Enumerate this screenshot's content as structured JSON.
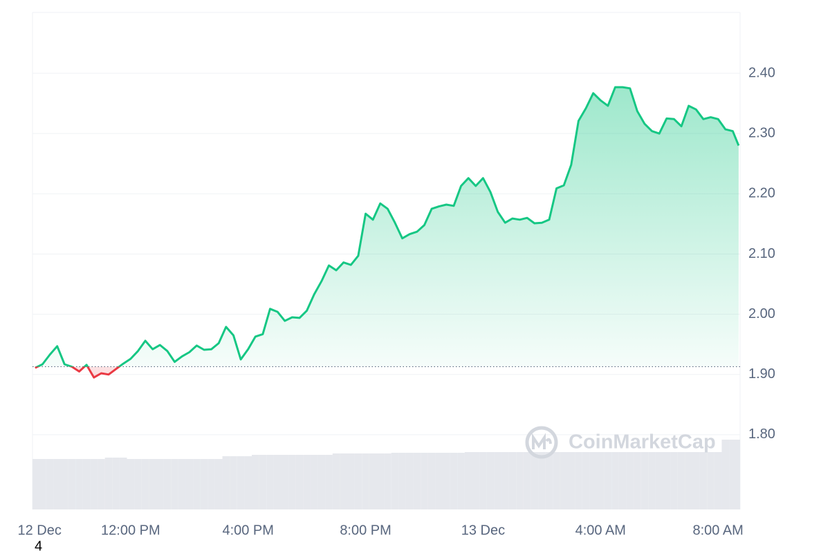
{
  "chart_data": {
    "type": "line",
    "x": [
      8.75,
      9,
      9.25,
      9.5,
      9.75,
      10,
      10.25,
      10.5,
      10.75,
      11,
      11.25,
      11.5,
      11.75,
      12,
      12.25,
      12.5,
      12.75,
      13,
      13.25,
      13.5,
      13.75,
      14,
      14.25,
      14.5,
      14.75,
      15,
      15.25,
      15.5,
      15.75,
      16,
      16.25,
      16.5,
      16.75,
      17,
      17.25,
      17.5,
      17.75,
      18,
      18.25,
      18.5,
      18.75,
      19,
      19.25,
      19.5,
      19.75,
      20,
      20.25,
      20.5,
      20.75,
      21,
      21.25,
      21.5,
      21.75,
      22,
      22.25,
      22.5,
      22.75,
      23,
      23.25,
      23.5,
      23.75,
      24,
      24.25,
      24.5,
      24.75,
      25,
      25.25,
      25.5,
      25.75,
      26,
      26.25,
      26.5,
      26.75,
      27,
      27.25,
      27.5,
      27.75,
      28,
      28.25,
      28.5,
      28.75,
      29,
      29.25,
      29.5,
      29.75,
      30,
      30.25,
      30.5,
      30.75,
      31,
      31.25,
      31.5,
      31.75,
      32,
      32.25,
      32.5,
      32.7
    ],
    "series": [
      {
        "color_up": "#16c784",
        "color_down": "#ea3943",
        "values": [
          1.911,
          1.917,
          1.933,
          1.947,
          1.917,
          1.913,
          1.905,
          1.916,
          1.895,
          1.902,
          1.9,
          1.909,
          1.918,
          1.926,
          1.939,
          1.956,
          1.942,
          1.949,
          1.939,
          1.921,
          1.93,
          1.937,
          1.948,
          1.941,
          1.942,
          1.952,
          1.979,
          1.965,
          1.925,
          1.942,
          1.963,
          1.967,
          2.009,
          2.004,
          1.989,
          1.995,
          1.994,
          2.006,
          2.033,
          2.055,
          2.081,
          2.073,
          2.086,
          2.082,
          2.097,
          2.167,
          2.157,
          2.184,
          2.175,
          2.152,
          2.126,
          2.133,
          2.137,
          2.148,
          2.175,
          2.179,
          2.182,
          2.18,
          2.213,
          2.226,
          2.213,
          2.226,
          2.203,
          2.17,
          2.152,
          2.159,
          2.157,
          2.16,
          2.151,
          2.152,
          2.157,
          2.209,
          2.214,
          2.248,
          2.321,
          2.342,
          2.367,
          2.355,
          2.346,
          2.377,
          2.377,
          2.375,
          2.337,
          2.316,
          2.304,
          2.3,
          2.325,
          2.324,
          2.312,
          2.346,
          2.34,
          2.324,
          2.327,
          2.324,
          2.307,
          2.304,
          2.28
        ]
      }
    ],
    "reference_line": 1.913,
    "volume": {
      "color": "#e6e8ed",
      "vlim": [
        0,
        110
      ],
      "values": [
        73,
        73,
        73,
        73,
        73,
        73,
        73,
        73,
        73,
        73,
        75,
        75,
        75,
        73,
        73,
        73,
        73,
        73,
        73,
        73,
        73,
        73,
        73,
        73,
        73,
        73,
        77,
        77,
        77,
        77,
        79,
        79,
        79,
        79,
        79,
        79,
        79,
        79,
        79,
        79,
        79,
        81,
        81,
        81,
        81,
        81,
        81,
        81,
        81,
        82,
        82,
        82,
        82,
        82,
        82,
        82,
        82,
        82,
        82,
        83,
        83,
        83,
        83,
        83,
        83,
        83,
        83,
        83,
        83,
        83,
        83,
        83,
        83,
        83,
        83,
        83,
        83,
        83,
        83,
        83,
        83,
        83,
        83,
        83,
        83,
        83,
        83,
        83,
        83,
        83,
        83,
        83,
        83,
        83,
        101,
        101,
        101
      ]
    },
    "xlim": [
      8.66,
      32.75
    ],
    "ylim": [
      1.676,
      2.501
    ],
    "yticks": [
      {
        "value": 1.8,
        "label": "1.80"
      },
      {
        "value": 1.9,
        "label": "1.90"
      },
      {
        "value": 2.0,
        "label": "2.00"
      },
      {
        "value": 2.1,
        "label": "2.10"
      },
      {
        "value": 2.2,
        "label": "2.20"
      },
      {
        "value": 2.3,
        "label": "2.30"
      },
      {
        "value": 2.4,
        "label": "2.40"
      }
    ],
    "xticks": [
      {
        "value": 8.9,
        "label": "12 Dec"
      },
      {
        "value": 12,
        "label": "12:00 PM"
      },
      {
        "value": 16,
        "label": "4:00 PM"
      },
      {
        "value": 20,
        "label": "8:00 PM"
      },
      {
        "value": 24,
        "label": "13 Dec"
      },
      {
        "value": 28,
        "label": "4:00 AM"
      },
      {
        "value": 32,
        "label": "8:00 AM"
      }
    ],
    "grid": true,
    "watermark": "CoinMarketCap",
    "corner_text": "4"
  }
}
